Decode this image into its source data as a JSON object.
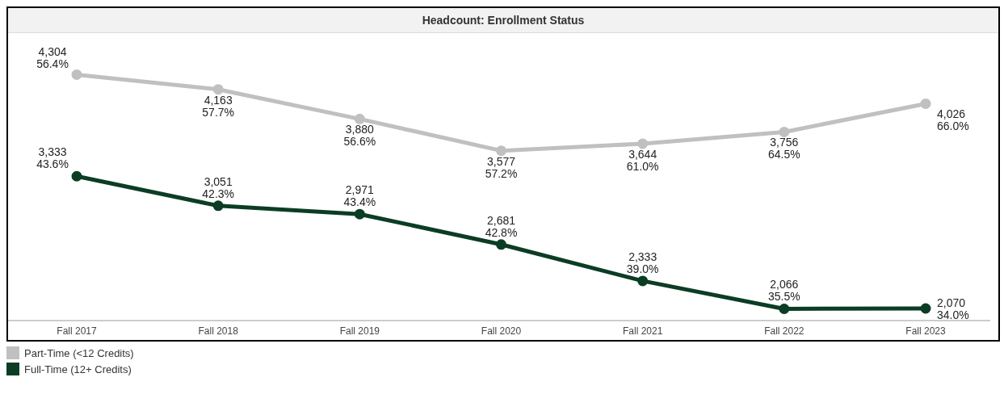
{
  "chart_data": {
    "type": "line",
    "title": "Headcount: Enrollment Status",
    "categories": [
      "Fall 2017",
      "Fall 2018",
      "Fall 2019",
      "Fall 2020",
      "Fall 2021",
      "Fall 2022",
      "Fall 2023"
    ],
    "series": [
      {
        "name": "Part-Time (<12 Credits)",
        "color": "#c0c0c0",
        "values": [
          4304,
          4163,
          3880,
          3577,
          3644,
          3756,
          4026
        ],
        "value_labels": [
          "4,304\n56.4%",
          "4,163\n57.7%",
          "3,880\n56.6%",
          "3,577\n57.2%",
          "3,644\n61.0%",
          "3,756\n64.5%",
          "4,026\n66.0%"
        ]
      },
      {
        "name": "Full-Time (12+ Credits)",
        "color": "#0b3d24",
        "values": [
          3333,
          3051,
          2971,
          2681,
          2333,
          2066,
          2070
        ],
        "value_labels": [
          "3,333\n43.6%",
          "3,051\n42.3%",
          "2,971\n43.4%",
          "2,681\n42.8%",
          "2,333\n39.0%",
          "2,066\n35.5%",
          "2,070\n34.0%"
        ]
      }
    ],
    "legend": "bottom left",
    "marker": "circle",
    "line_style": "solid"
  }
}
